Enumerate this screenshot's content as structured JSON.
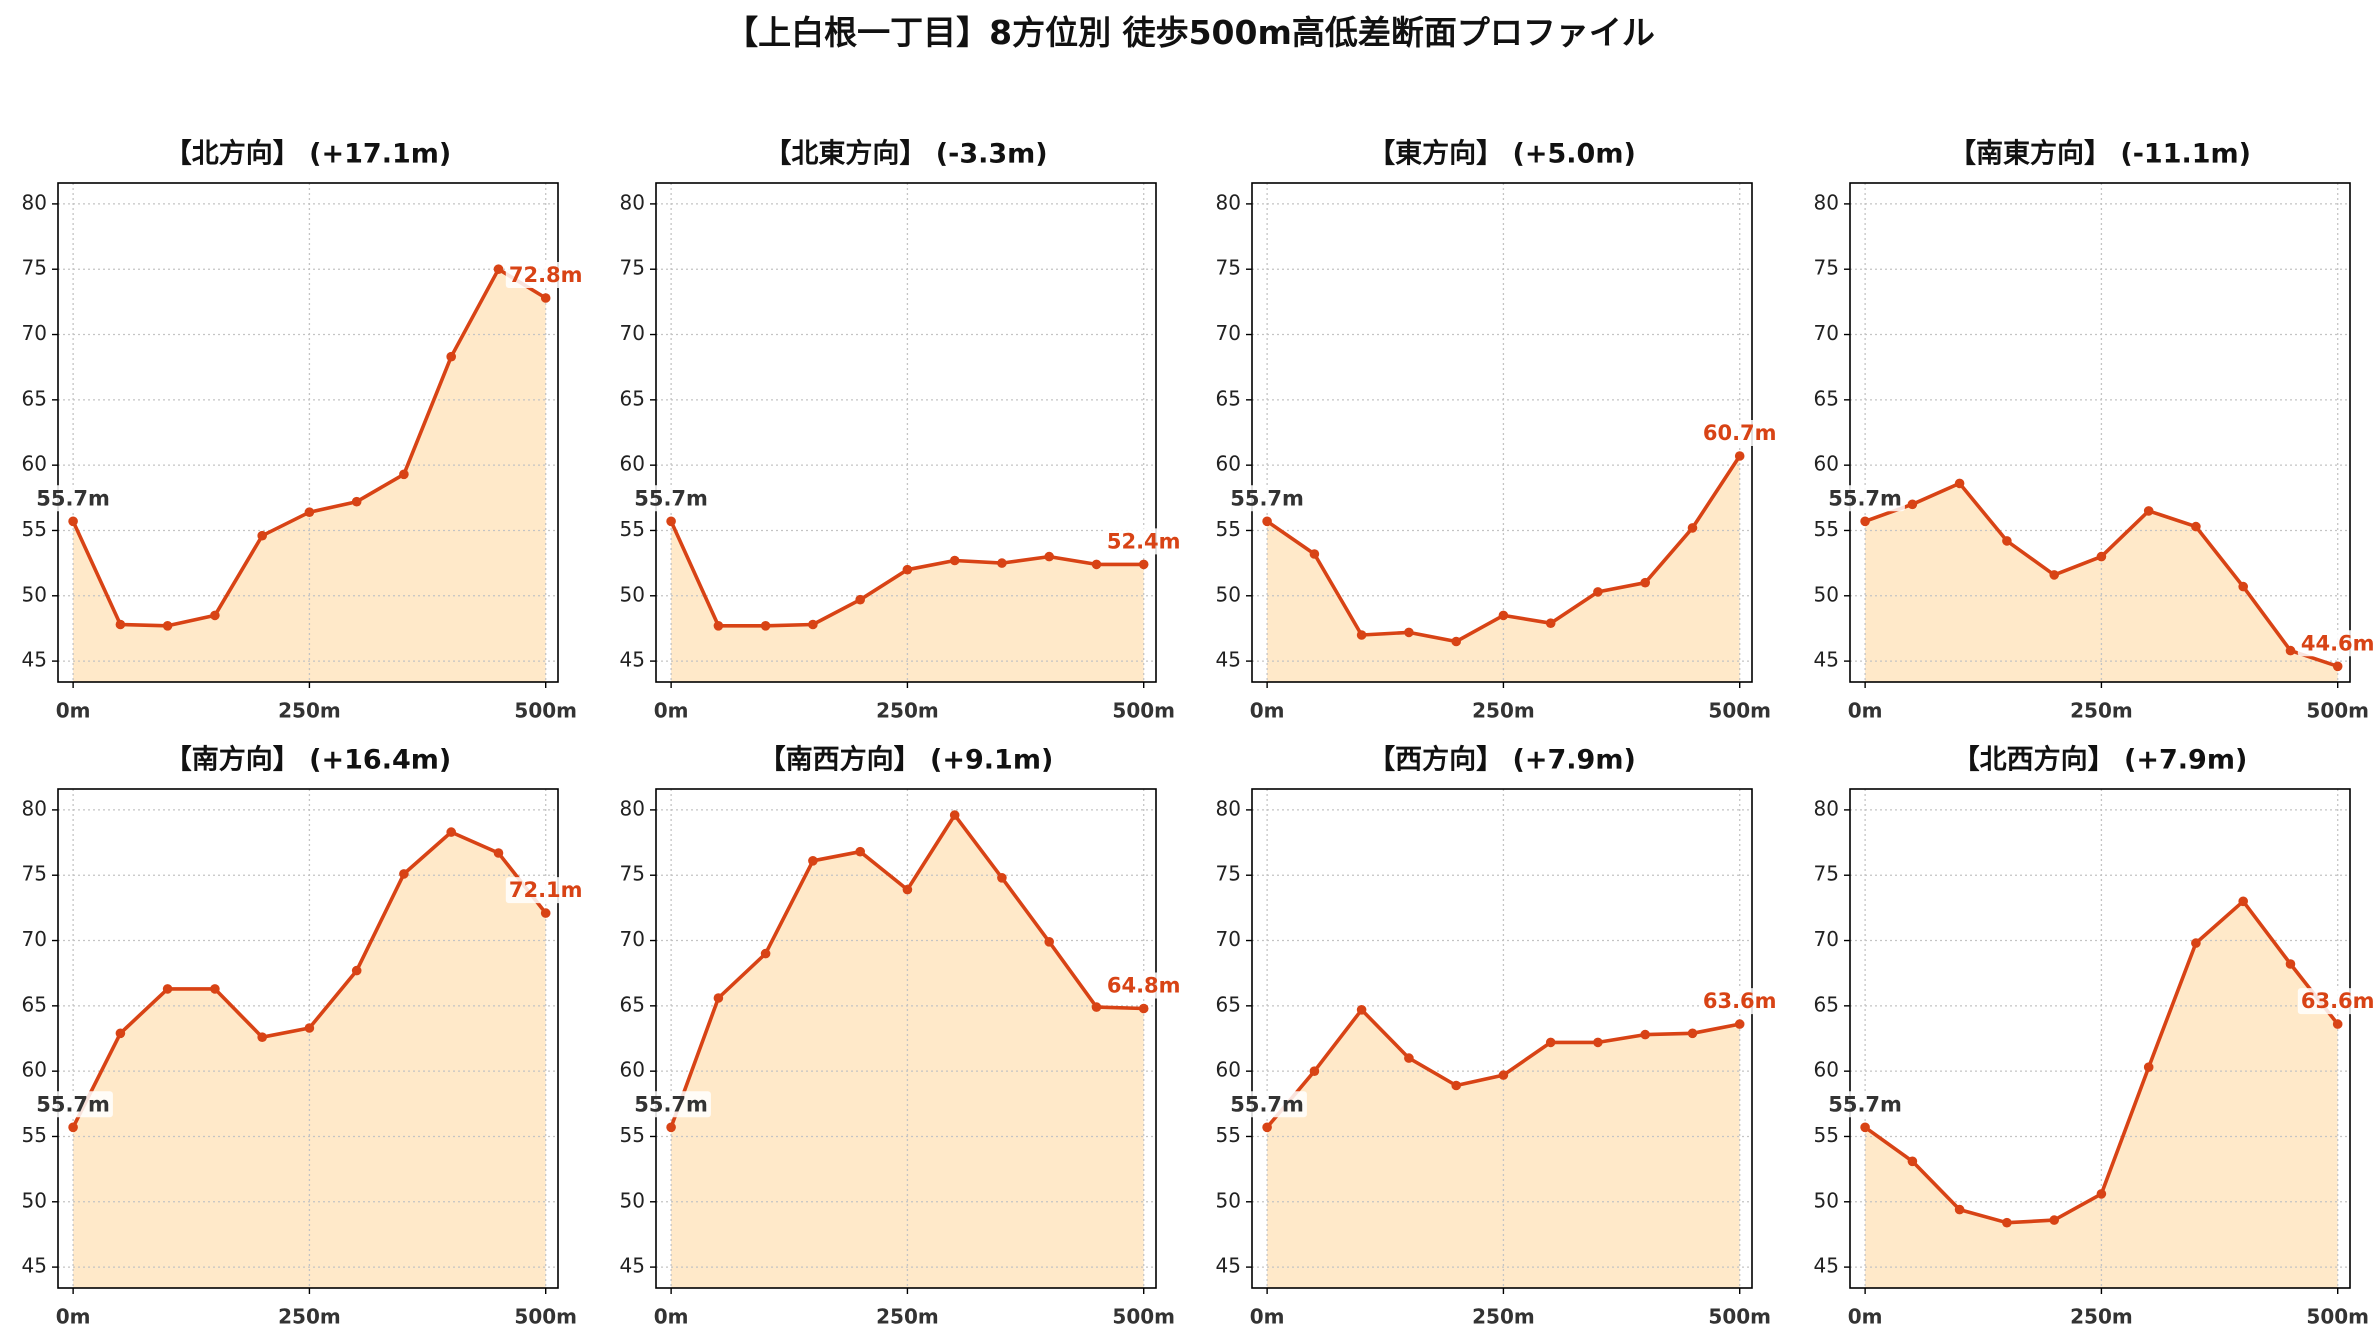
{
  "title": "【上白根一丁目】8方位別 徒歩500m高低差断面プロファイル",
  "colors": {
    "line": "#d84315",
    "fill": "#ffe9c9",
    "start_label": "#333333",
    "label_box": "#ffffff"
  },
  "chart_data": [
    {
      "type": "area",
      "title": "【北方向】 (+17.1m)",
      "x": [
        0,
        50,
        100,
        150,
        200,
        250,
        300,
        350,
        400,
        450,
        500
      ],
      "values": [
        55.7,
        47.8,
        47.7,
        48.5,
        54.6,
        56.4,
        57.2,
        59.3,
        68.3,
        75.0,
        72.8
      ],
      "xticks": [
        0,
        250,
        500
      ],
      "xticklabels": [
        "0m",
        "250m",
        "500m"
      ],
      "yticks": [
        45,
        50,
        55,
        60,
        65,
        70,
        75,
        80
      ],
      "xlim": [
        -16,
        513
      ],
      "ylim": [
        43.4,
        81.6
      ],
      "grid": true,
      "start_label": "55.7m",
      "end_label": "72.8m"
    },
    {
      "type": "area",
      "title": "【北東方向】 (-3.3m)",
      "x": [
        0,
        50,
        100,
        150,
        200,
        250,
        300,
        350,
        400,
        450,
        500
      ],
      "values": [
        55.7,
        47.7,
        47.7,
        47.8,
        49.7,
        52.0,
        52.7,
        52.5,
        53.0,
        52.4,
        52.4
      ],
      "xticks": [
        0,
        250,
        500
      ],
      "xticklabels": [
        "0m",
        "250m",
        "500m"
      ],
      "yticks": [
        45,
        50,
        55,
        60,
        65,
        70,
        75,
        80
      ],
      "xlim": [
        -16,
        513
      ],
      "ylim": [
        43.4,
        81.6
      ],
      "grid": true,
      "start_label": "55.7m",
      "end_label": "52.4m"
    },
    {
      "type": "area",
      "title": "【東方向】 (+5.0m)",
      "x": [
        0,
        50,
        100,
        150,
        200,
        250,
        300,
        350,
        400,
        450,
        500
      ],
      "values": [
        55.7,
        53.2,
        47.0,
        47.2,
        46.5,
        48.5,
        47.9,
        50.3,
        51.0,
        55.2,
        60.7
      ],
      "xticks": [
        0,
        250,
        500
      ],
      "xticklabels": [
        "0m",
        "250m",
        "500m"
      ],
      "yticks": [
        45,
        50,
        55,
        60,
        65,
        70,
        75,
        80
      ],
      "xlim": [
        -16,
        513
      ],
      "ylim": [
        43.4,
        81.6
      ],
      "grid": true,
      "start_label": "55.7m",
      "end_label": "60.7m"
    },
    {
      "type": "area",
      "title": "【南東方向】 (-11.1m)",
      "x": [
        0,
        50,
        100,
        150,
        200,
        250,
        300,
        350,
        400,
        450,
        500
      ],
      "values": [
        55.7,
        57.0,
        58.6,
        54.2,
        51.6,
        53.0,
        56.5,
        55.3,
        50.7,
        45.8,
        44.6
      ],
      "xticks": [
        0,
        250,
        500
      ],
      "xticklabels": [
        "0m",
        "250m",
        "500m"
      ],
      "yticks": [
        45,
        50,
        55,
        60,
        65,
        70,
        75,
        80
      ],
      "xlim": [
        -16,
        513
      ],
      "ylim": [
        43.4,
        81.6
      ],
      "grid": true,
      "start_label": "55.7m",
      "end_label": "44.6m"
    },
    {
      "type": "area",
      "title": "【南方向】 (+16.4m)",
      "x": [
        0,
        50,
        100,
        150,
        200,
        250,
        300,
        350,
        400,
        450,
        500
      ],
      "values": [
        55.7,
        62.9,
        66.3,
        66.3,
        62.6,
        63.3,
        67.7,
        75.1,
        78.3,
        76.7,
        72.1
      ],
      "xticks": [
        0,
        250,
        500
      ],
      "xticklabels": [
        "0m",
        "250m",
        "500m"
      ],
      "yticks": [
        45,
        50,
        55,
        60,
        65,
        70,
        75,
        80
      ],
      "xlim": [
        -16,
        513
      ],
      "ylim": [
        43.4,
        81.6
      ],
      "grid": true,
      "start_label": "55.7m",
      "end_label": "72.1m"
    },
    {
      "type": "area",
      "title": "【南西方向】 (+9.1m)",
      "x": [
        0,
        50,
        100,
        150,
        200,
        250,
        300,
        350,
        400,
        450,
        500
      ],
      "values": [
        55.7,
        65.6,
        69.0,
        76.1,
        76.8,
        73.9,
        79.6,
        74.8,
        69.9,
        64.9,
        64.8
      ],
      "xticks": [
        0,
        250,
        500
      ],
      "xticklabels": [
        "0m",
        "250m",
        "500m"
      ],
      "yticks": [
        45,
        50,
        55,
        60,
        65,
        70,
        75,
        80
      ],
      "xlim": [
        -16,
        513
      ],
      "ylim": [
        43.4,
        81.6
      ],
      "grid": true,
      "start_label": "55.7m",
      "end_label": "64.8m"
    },
    {
      "type": "area",
      "title": "【西方向】 (+7.9m)",
      "x": [
        0,
        50,
        100,
        150,
        200,
        250,
        300,
        350,
        400,
        450,
        500
      ],
      "values": [
        55.7,
        60.0,
        64.7,
        61.0,
        58.9,
        59.7,
        62.2,
        62.2,
        62.8,
        62.9,
        63.6
      ],
      "xticks": [
        0,
        250,
        500
      ],
      "xticklabels": [
        "0m",
        "250m",
        "500m"
      ],
      "yticks": [
        45,
        50,
        55,
        60,
        65,
        70,
        75,
        80
      ],
      "xlim": [
        -16,
        513
      ],
      "ylim": [
        43.4,
        81.6
      ],
      "grid": true,
      "start_label": "55.7m",
      "end_label": "63.6m"
    },
    {
      "type": "area",
      "title": "【北西方向】 (+7.9m)",
      "x": [
        0,
        50,
        100,
        150,
        200,
        250,
        300,
        350,
        400,
        450,
        500
      ],
      "values": [
        55.7,
        53.1,
        49.4,
        48.4,
        48.6,
        50.6,
        60.3,
        69.8,
        73.0,
        68.2,
        63.6
      ],
      "xticks": [
        0,
        250,
        500
      ],
      "xticklabels": [
        "0m",
        "250m",
        "500m"
      ],
      "yticks": [
        45,
        50,
        55,
        60,
        65,
        70,
        75,
        80
      ],
      "xlim": [
        -16,
        513
      ],
      "ylim": [
        43.4,
        81.6
      ],
      "grid": true,
      "start_label": "55.7m",
      "end_label": "63.6m"
    }
  ]
}
